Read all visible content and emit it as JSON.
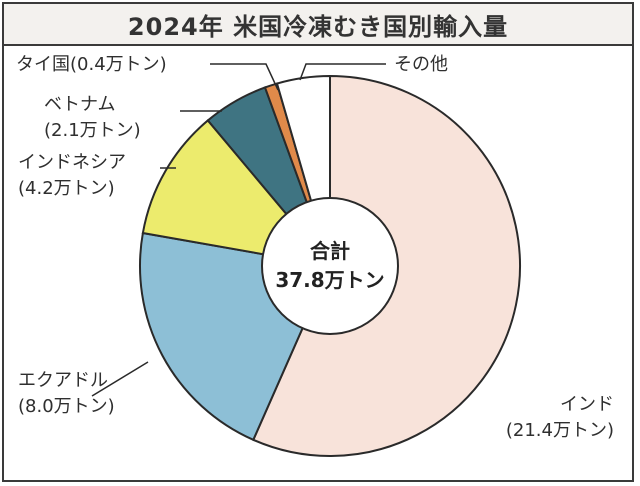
{
  "chart_data": {
    "type": "pie",
    "title": "2024年 米国冷凍むき国別輸入量",
    "center_label": [
      "合計",
      "37.8万トン"
    ],
    "total": 37.8,
    "unit": "万トン",
    "slices": [
      {
        "name": "インド",
        "value": 21.4,
        "label_lines": [
          "インド",
          "(21.4万トン)"
        ],
        "color": "#f8e3da"
      },
      {
        "name": "エクアドル",
        "value": 8.0,
        "label_lines": [
          "エクアドル",
          "(8.0万トン)"
        ],
        "color": "#8dbfd6"
      },
      {
        "name": "インドネシア",
        "value": 4.2,
        "label_lines": [
          "インドネシア",
          "(4.2万トン)"
        ],
        "color": "#eceb6d"
      },
      {
        "name": "ベトナム",
        "value": 2.1,
        "label_lines": [
          "ベトナム",
          "(2.1万トン)"
        ],
        "color": "#3f7482"
      },
      {
        "name": "タイ国",
        "value": 0.4,
        "label_lines": [
          "タイ国(0.4万トン)"
        ],
        "color": "#e08a4a"
      },
      {
        "name": "その他",
        "value": 1.7,
        "label_lines": [
          "その他"
        ],
        "color": "#ffffff"
      }
    ]
  }
}
